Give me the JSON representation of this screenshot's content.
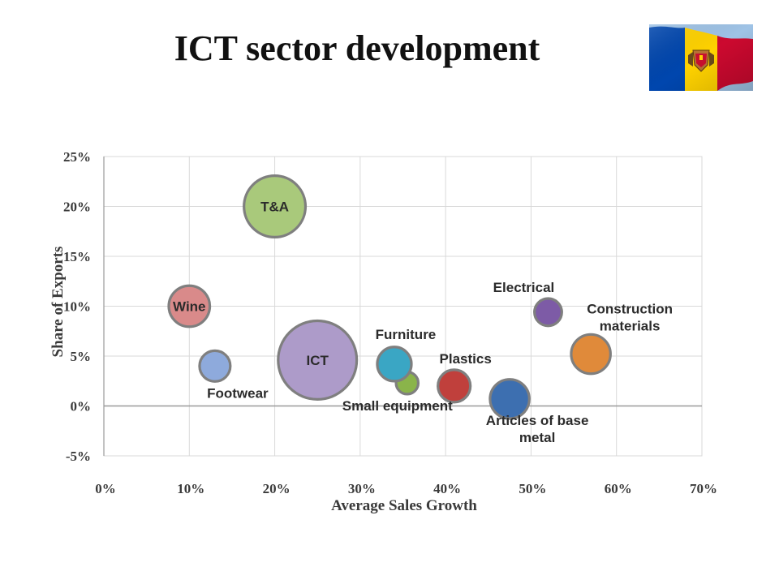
{
  "page": {
    "title": "ICT sector development"
  },
  "flag": {
    "icon": "moldova-flag-icon",
    "colors": [
      "#0046ae",
      "#ffd200",
      "#cc092f"
    ]
  },
  "chart_data": {
    "type": "bubble",
    "title": "",
    "xlabel": "Average Sales Growth",
    "ylabel": "Share of Exports",
    "xlim": [
      0,
      70
    ],
    "ylim": [
      -5,
      25
    ],
    "x_ticks": [
      "0%",
      "10%",
      "20%",
      "30%",
      "40%",
      "50%",
      "60%",
      "70%"
    ],
    "y_ticks": [
      "25%",
      "20%",
      "15%",
      "10%",
      "5%",
      "0%",
      "-5%"
    ],
    "grid": true,
    "legend": "none",
    "series": [
      {
        "name": "T&A",
        "label_lines": [
          "T&A"
        ],
        "x": 20,
        "y": 20,
        "size": 3.6,
        "color": "#a9c97b",
        "label_pos": "center"
      },
      {
        "name": "Wine",
        "label_lines": [
          "Wine"
        ],
        "x": 10,
        "y": 10,
        "size": 2.4,
        "color": "#d98a8a",
        "label_pos": "center"
      },
      {
        "name": "Footwear",
        "label_lines": [
          "Footwear"
        ],
        "x": 13,
        "y": 4,
        "size": 1.8,
        "color": "#8eaadc",
        "label_pos": "below"
      },
      {
        "name": "ICT",
        "label_lines": [
          "ICT"
        ],
        "x": 25,
        "y": 4.6,
        "size": 4.6,
        "color": "#ad9bc9",
        "label_pos": "center"
      },
      {
        "name": "Small equipment",
        "label_lines": [
          "Small equipment"
        ],
        "x": 35.5,
        "y": 2.3,
        "size": 1.3,
        "color": "#8ab44a",
        "label_pos": "below"
      },
      {
        "name": "Furniture",
        "label_lines": [
          "Furniture"
        ],
        "x": 34,
        "y": 4.2,
        "size": 2.0,
        "color": "#3aa6c4",
        "label_pos": "above"
      },
      {
        "name": "Plastics",
        "label_lines": [
          "Plastics"
        ],
        "x": 41,
        "y": 2,
        "size": 1.9,
        "color": "#c0403c",
        "label_pos": "above"
      },
      {
        "name": "Articles of base metal",
        "label_lines": [
          "Articles of base",
          "metal"
        ],
        "x": 47.5,
        "y": 0.7,
        "size": 2.3,
        "color": "#3d6fb0",
        "label_pos": "below"
      },
      {
        "name": "Electrical",
        "label_lines": [
          "Electrical"
        ],
        "x": 52,
        "y": 9.4,
        "size": 1.6,
        "color": "#7d5ba6",
        "label_pos": "above"
      },
      {
        "name": "Construction materials",
        "label_lines": [
          "Construction",
          "materials"
        ],
        "x": 57,
        "y": 5.2,
        "size": 2.3,
        "color": "#e08a3a",
        "label_pos": "above-right"
      }
    ]
  }
}
